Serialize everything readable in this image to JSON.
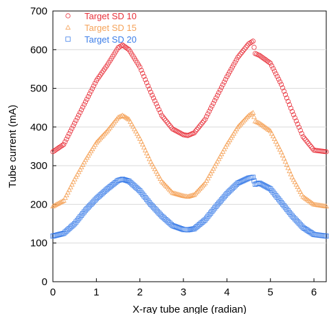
{
  "chart_data": {
    "type": "scatter",
    "title": "",
    "xlabel": "X-ray tube angle (radian)",
    "ylabel": "Tube current (mA)",
    "xlim": [
      0,
      6.283
    ],
    "ylim": [
      0,
      700
    ],
    "xticks": [
      0,
      1,
      2,
      3,
      4,
      5,
      6
    ],
    "yticks": [
      0,
      100,
      200,
      300,
      400,
      500,
      600,
      700
    ],
    "grid": true,
    "legend_position": "top-left",
    "series": [
      {
        "name": "Target SD 10",
        "marker": "circle",
        "color": "#e8303a",
        "x": [
          0,
          0.25,
          0.5,
          0.75,
          1.0,
          1.25,
          1.5,
          1.6,
          1.75,
          2.0,
          2.25,
          2.5,
          2.75,
          3.0,
          3.1,
          3.25,
          3.5,
          3.75,
          4.0,
          4.25,
          4.5,
          4.6,
          4.65,
          4.75,
          5.0,
          5.25,
          5.5,
          5.75,
          6.0,
          6.283
        ],
        "y": [
          336,
          355,
          410,
          465,
          520,
          560,
          605,
          612,
          600,
          555,
          490,
          430,
          395,
          380,
          378,
          385,
          420,
          475,
          530,
          580,
          615,
          622,
          590,
          585,
          565,
          510,
          440,
          375,
          340,
          336
        ]
      },
      {
        "name": "Target SD 15",
        "marker": "triangle",
        "color": "#f5a35a",
        "x": [
          0,
          0.25,
          0.5,
          0.75,
          1.0,
          1.25,
          1.5,
          1.6,
          1.75,
          2.0,
          2.25,
          2.5,
          2.75,
          3.0,
          3.1,
          3.25,
          3.5,
          3.75,
          4.0,
          4.25,
          4.5,
          4.6,
          4.65,
          4.75,
          5.0,
          5.25,
          5.5,
          5.75,
          6.0,
          6.283
        ],
        "y": [
          195,
          210,
          265,
          315,
          360,
          390,
          425,
          430,
          420,
          370,
          310,
          260,
          230,
          222,
          220,
          225,
          255,
          305,
          355,
          400,
          430,
          437,
          415,
          410,
          390,
          335,
          270,
          220,
          200,
          195
        ]
      },
      {
        "name": "Target SD 20",
        "marker": "square",
        "color": "#3b7de8",
        "x": [
          0,
          0.25,
          0.5,
          0.75,
          1.0,
          1.25,
          1.5,
          1.6,
          1.75,
          2.0,
          2.25,
          2.5,
          2.75,
          3.0,
          3.1,
          3.25,
          3.5,
          3.75,
          4.0,
          4.25,
          4.5,
          4.6,
          4.65,
          4.75,
          5.0,
          5.25,
          5.5,
          5.75,
          6.0,
          6.283
        ],
        "y": [
          118,
          125,
          150,
          185,
          215,
          240,
          262,
          265,
          260,
          235,
          200,
          170,
          145,
          135,
          134,
          137,
          160,
          195,
          228,
          255,
          268,
          270,
          252,
          255,
          240,
          205,
          170,
          140,
          122,
          118
        ]
      }
    ]
  }
}
